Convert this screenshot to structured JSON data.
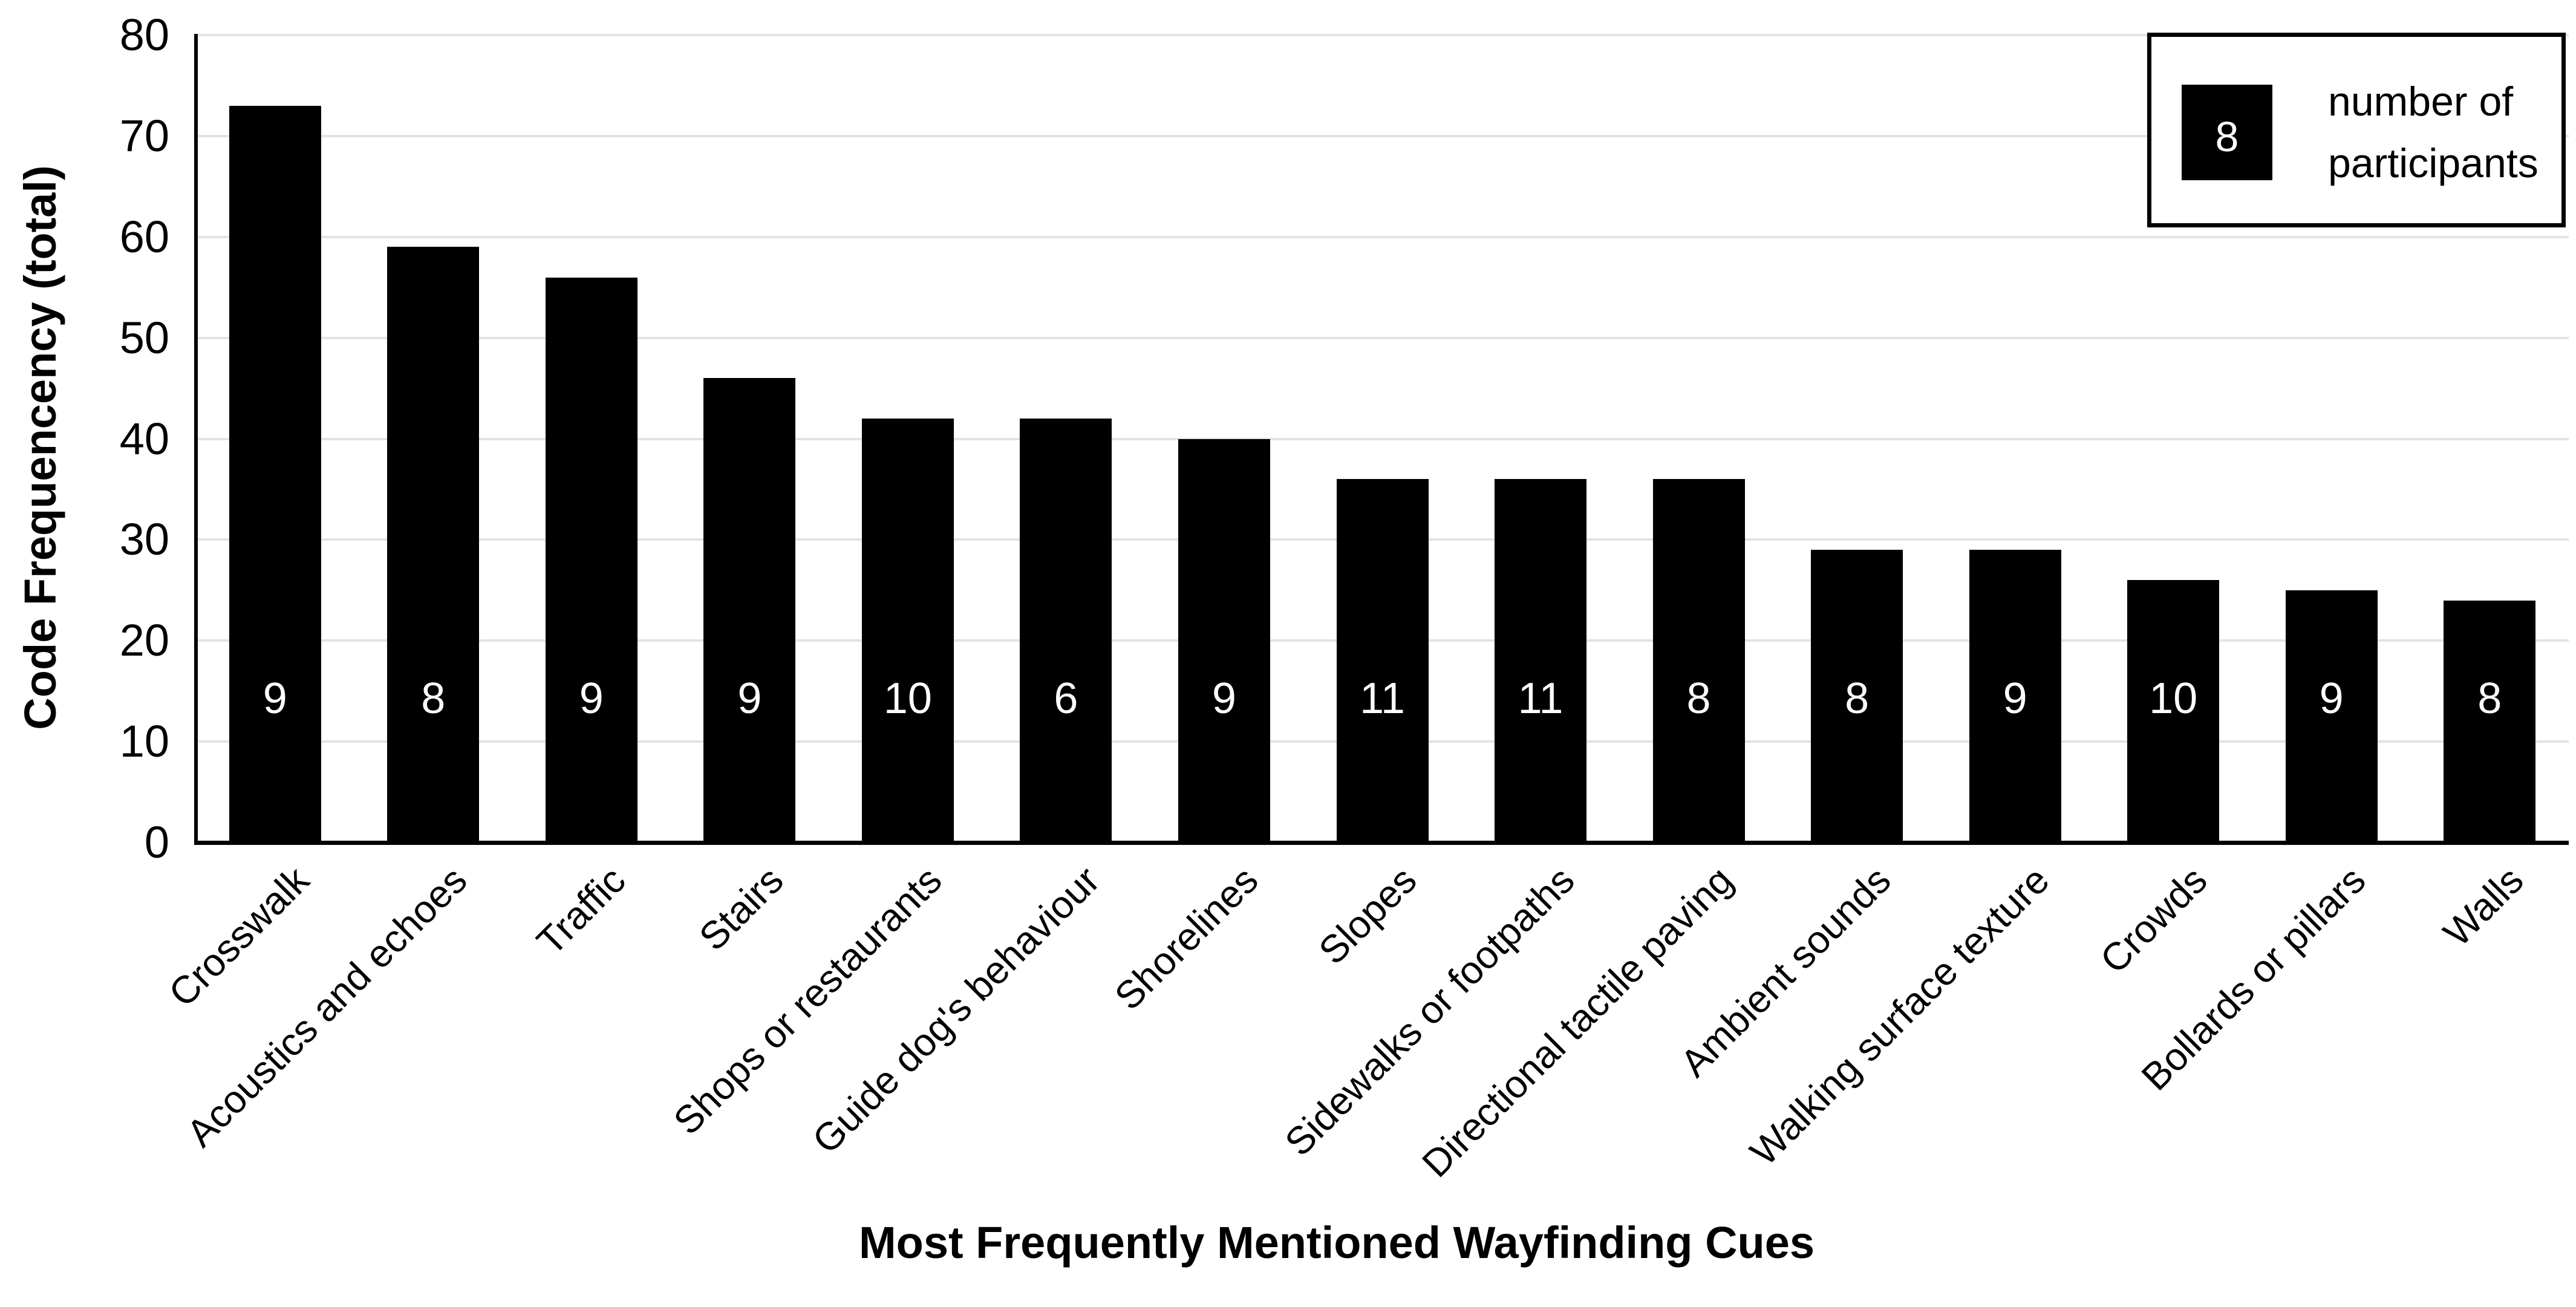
{
  "chart_data": {
    "type": "bar",
    "title": "",
    "xlabel": "Most Frequently Mentioned Wayfinding Cues",
    "ylabel": "Code Frequencency (total)",
    "ylim": [
      0,
      80
    ],
    "yticks": [
      0,
      10,
      20,
      30,
      40,
      50,
      60,
      70,
      80
    ],
    "grid": "horizontal",
    "legend_position": "top-right",
    "categories": [
      "Crosswalk",
      "Acoustics and echoes",
      "Traffic",
      "Stairs",
      "Shops or restaurants",
      "Guide dog's behaviour",
      "Shorelines",
      "Slopes",
      "Sidewalks or footpaths",
      "Directional tactile paving",
      "Ambient sounds",
      "Walking surface texture",
      "Crowds",
      "Bollards or pillars",
      "Walls"
    ],
    "values": [
      73,
      59,
      56,
      46,
      42,
      42,
      40,
      36,
      36,
      36,
      29,
      29,
      26,
      25,
      24
    ],
    "participants": [
      9,
      8,
      9,
      9,
      10,
      6,
      9,
      11,
      11,
      8,
      8,
      9,
      10,
      9,
      8
    ],
    "bar_color": "#000000",
    "bar_label_color": "#ffffff",
    "gridline_color": "#e3e3e3",
    "axis_color": "#000000",
    "background_color": "#ffffff"
  },
  "legend": {
    "swatch_value": "8",
    "label_lines": [
      "number of",
      "participants"
    ]
  }
}
